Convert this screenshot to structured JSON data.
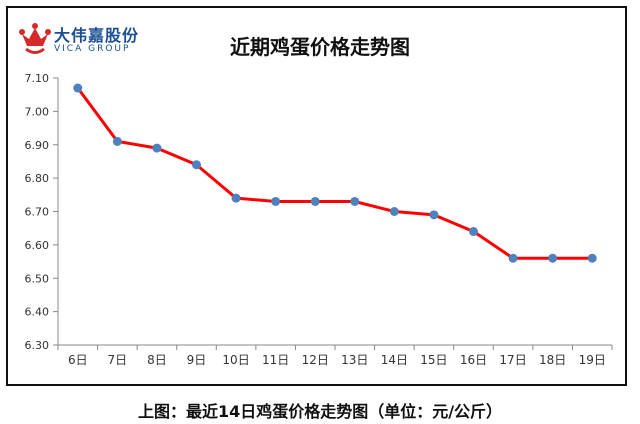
{
  "logo": {
    "name_cn": "大伟嘉股份",
    "name_en": "VICA GROUP"
  },
  "caption": "上图：最近14日鸡蛋价格走势图（单位：元/公斤）",
  "chart_data": {
    "type": "line",
    "title": "近期鸡蛋价格走势图",
    "xlabel": "",
    "ylabel": "",
    "categories": [
      "6日",
      "7日",
      "8日",
      "9日",
      "10日",
      "11日",
      "12日",
      "13日",
      "14日",
      "15日",
      "16日",
      "17日",
      "18日",
      "19日"
    ],
    "series": [
      {
        "values": [
          7.07,
          6.91,
          6.89,
          6.84,
          6.74,
          6.73,
          6.73,
          6.73,
          6.7,
          6.69,
          6.64,
          6.56,
          6.56,
          6.56
        ]
      }
    ],
    "ylim": [
      6.3,
      7.1
    ],
    "yticks": [
      "6.30",
      "6.40",
      "6.50",
      "6.60",
      "6.70",
      "6.80",
      "6.90",
      "7.00",
      "7.10"
    ],
    "grid": false,
    "colors": {
      "line": "#ff0000",
      "marker": "#4f81bd",
      "axis": "#888888"
    }
  }
}
